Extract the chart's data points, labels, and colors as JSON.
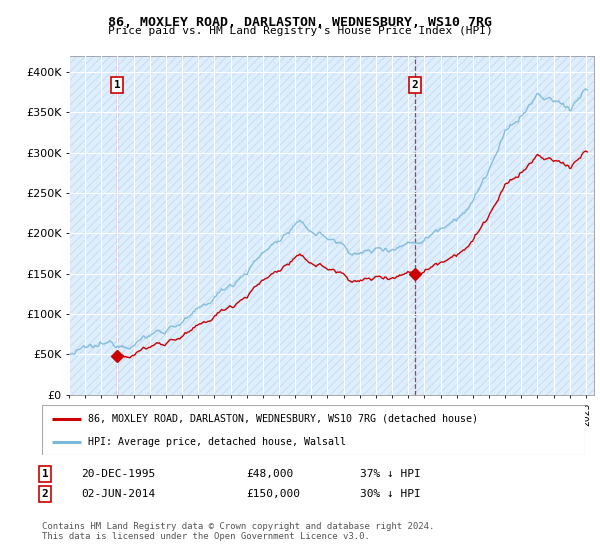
{
  "title": "86, MOXLEY ROAD, DARLASTON, WEDNESBURY, WS10 7RG",
  "subtitle": "Price paid vs. HM Land Registry's House Price Index (HPI)",
  "ylim": [
    0,
    420000
  ],
  "yticks": [
    0,
    50000,
    100000,
    150000,
    200000,
    250000,
    300000,
    350000,
    400000
  ],
  "ytick_labels": [
    "£0",
    "£50K",
    "£100K",
    "£150K",
    "£200K",
    "£250K",
    "£300K",
    "£350K",
    "£400K"
  ],
  "xlim_start": 1993.0,
  "xlim_end": 2025.5,
  "sale1_x": 1995.97,
  "sale1_y": 48000,
  "sale1_label": "1",
  "sale1_date": "20-DEC-1995",
  "sale1_price": "£48,000",
  "sale1_hpi": "37% ↓ HPI",
  "sale2_x": 2014.42,
  "sale2_y": 150000,
  "sale2_label": "2",
  "sale2_date": "02-JUN-2014",
  "sale2_price": "£150,000",
  "sale2_hpi": "30% ↓ HPI",
  "hpi_color": "#7ab8d9",
  "price_color": "#cc0000",
  "sale_marker_color": "#cc0000",
  "bg_color": "#ddeeff",
  "hatch_color": "#c5d8ea",
  "grid_color": "#ffffff",
  "legend_label_red": "86, MOXLEY ROAD, DARLASTON, WEDNESBURY, WS10 7RG (detached house)",
  "legend_label_blue": "HPI: Average price, detached house, Walsall",
  "footer": "Contains HM Land Registry data © Crown copyright and database right 2024.\nThis data is licensed under the Open Government Licence v3.0."
}
